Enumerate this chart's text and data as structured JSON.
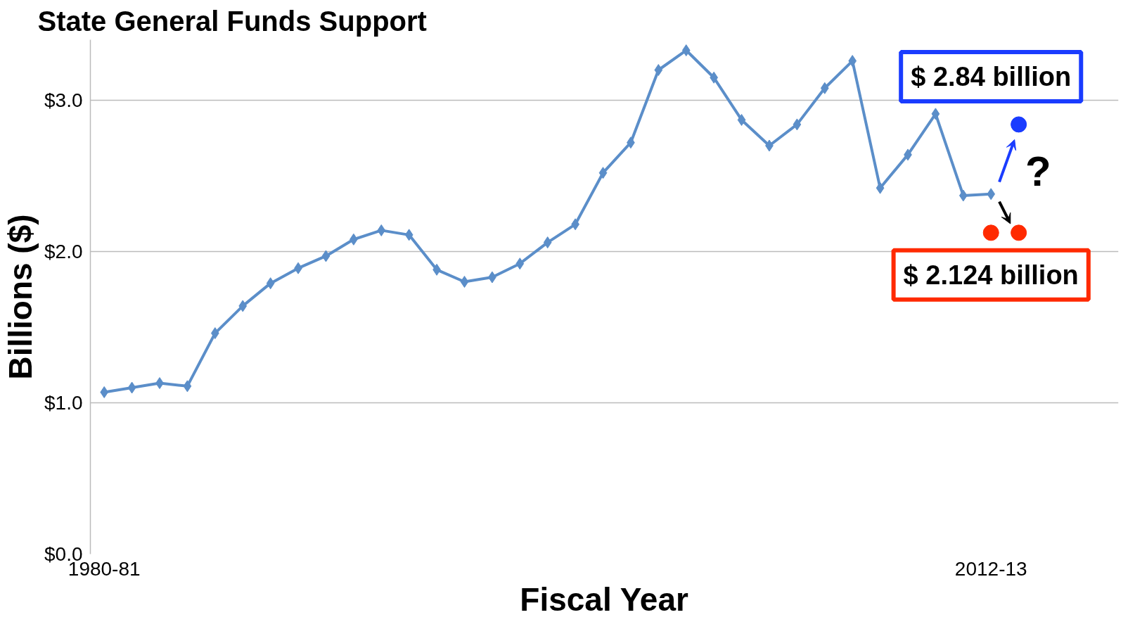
{
  "chart_data": {
    "type": "line",
    "title": "State General Funds Support",
    "xlabel": "Fiscal Year",
    "ylabel": "Billions ($)",
    "categories": [
      "1980-81",
      null,
      null,
      null,
      null,
      null,
      null,
      null,
      null,
      null,
      null,
      null,
      null,
      null,
      null,
      null,
      null,
      null,
      null,
      null,
      null,
      null,
      null,
      null,
      null,
      null,
      null,
      null,
      null,
      null,
      null,
      null,
      "2012-13",
      null
    ],
    "series": [
      {
        "color": "#5b8ec9",
        "values": [
          1.07,
          1.1,
          1.13,
          1.11,
          1.46,
          1.64,
          1.79,
          1.89,
          1.97,
          2.08,
          2.14,
          2.11,
          1.88,
          1.8,
          1.83,
          1.92,
          2.06,
          2.18,
          2.52,
          2.72,
          3.2,
          3.33,
          3.15,
          2.87,
          2.7,
          2.84,
          3.08,
          3.26,
          2.42,
          2.64,
          2.91,
          2.37,
          2.38,
          null
        ]
      },
      {
        "type": "scatter",
        "marker": "circle",
        "color": "#ff2a00",
        "values": [
          null,
          null,
          null,
          null,
          null,
          null,
          null,
          null,
          null,
          null,
          null,
          null,
          null,
          null,
          null,
          null,
          null,
          null,
          null,
          null,
          null,
          null,
          null,
          null,
          null,
          null,
          null,
          null,
          null,
          null,
          null,
          null,
          2.124,
          2.124
        ]
      },
      {
        "type": "scatter",
        "marker": "circle",
        "color": "#1a3cff",
        "values": [
          null,
          null,
          null,
          null,
          null,
          null,
          null,
          null,
          null,
          null,
          null,
          null,
          null,
          null,
          null,
          null,
          null,
          null,
          null,
          null,
          null,
          null,
          null,
          null,
          null,
          null,
          null,
          null,
          null,
          null,
          null,
          null,
          null,
          2.84
        ]
      }
    ],
    "annotations": [
      "$ 2.84 billion",
      "$ 2.124 billion",
      "?"
    ],
    "ylim": [
      0,
      3.4
    ],
    "yticks": [
      {
        "value": 0,
        "label": "$0.0"
      },
      {
        "value": 1,
        "label": "$1.0"
      },
      {
        "value": 2,
        "label": "$2.0"
      },
      {
        "value": 3,
        "label": "$3.0"
      }
    ],
    "grid": "y",
    "marker": "diamond",
    "line_style": "solid"
  }
}
